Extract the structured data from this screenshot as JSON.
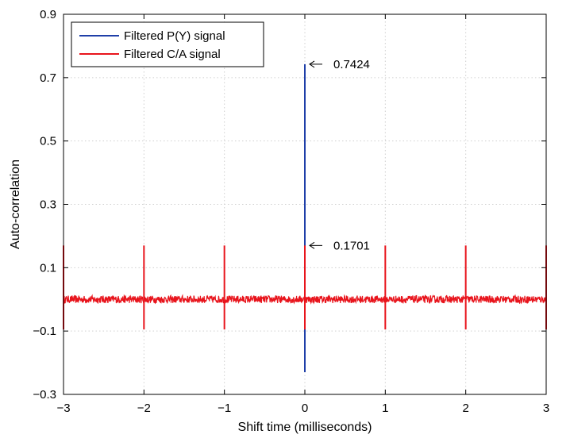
{
  "chart_data": {
    "type": "line",
    "title": "",
    "xlabel": "Shift time (milliseconds)",
    "ylabel": "Auto-correlation",
    "xlim": [
      -3,
      3
    ],
    "ylim": [
      -0.3,
      0.9
    ],
    "xticks": [
      -3,
      -2,
      -1,
      0,
      1,
      2,
      3
    ],
    "xtick_labels": [
      "−3",
      "−2",
      "−1",
      "0",
      "1",
      "2",
      "3"
    ],
    "yticks": [
      -0.3,
      -0.1,
      0.1,
      0.3,
      0.5,
      0.7,
      0.9
    ],
    "ytick_labels": [
      "−0.3",
      "−0.1",
      "0.1",
      "0.3",
      "0.5",
      "0.7",
      "0.9"
    ],
    "grid": true,
    "legend_position": "top-left",
    "series": [
      {
        "name": "Filtered P(Y) signal",
        "color": "#1f3fa8",
        "spikes": [
          {
            "x": 0,
            "ymax": 0.7424,
            "ymin": -0.23
          }
        ]
      },
      {
        "name": "Filtered C/A signal",
        "color": "#e8141c",
        "noise_floor": {
          "center": 0.0,
          "amplitude": 0.012
        },
        "spikes": [
          {
            "x": -3,
            "ymax": 0.1701,
            "ymin": -0.095
          },
          {
            "x": -2,
            "ymax": 0.1701,
            "ymin": -0.095
          },
          {
            "x": -1,
            "ymax": 0.1701,
            "ymin": -0.095
          },
          {
            "x": 0,
            "ymax": 0.1701,
            "ymin": -0.095
          },
          {
            "x": 1,
            "ymax": 0.1701,
            "ymin": -0.095
          },
          {
            "x": 2,
            "ymax": 0.1701,
            "ymin": -0.095
          },
          {
            "x": 3,
            "ymax": 0.1701,
            "ymin": -0.095
          }
        ]
      }
    ],
    "annotations": [
      {
        "text": "0.7424",
        "x": 0,
        "y": 0.7424
      },
      {
        "text": "0.1701",
        "x": 0,
        "y": 0.1701
      }
    ]
  },
  "colors": {
    "grid": "#cfcfcf",
    "axis": "#000000"
  }
}
